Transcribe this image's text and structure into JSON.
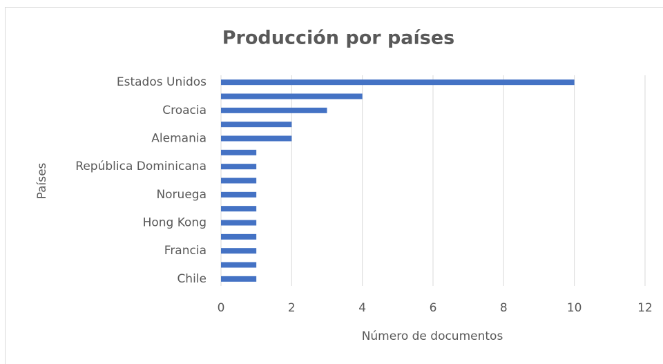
{
  "chart_data": {
    "type": "bar",
    "orientation": "horizontal",
    "title": "Producción por países",
    "x_label": "Número de documentos",
    "y_label": "Países",
    "categories": [
      "Estados Unidos",
      null,
      "Croacia",
      null,
      "Alemania",
      null,
      "República Dominicana",
      null,
      "Noruega",
      null,
      "Hong Kong",
      null,
      "Francia",
      null,
      "Chile"
    ],
    "values": [
      10,
      4,
      3,
      2,
      2,
      1,
      1,
      1,
      1,
      1,
      1,
      1,
      1,
      1,
      1
    ],
    "color": "#4472c4",
    "xlim": [
      0,
      12
    ],
    "xticks": [
      0,
      2,
      4,
      6,
      8,
      10,
      12
    ],
    "grid": true
  }
}
